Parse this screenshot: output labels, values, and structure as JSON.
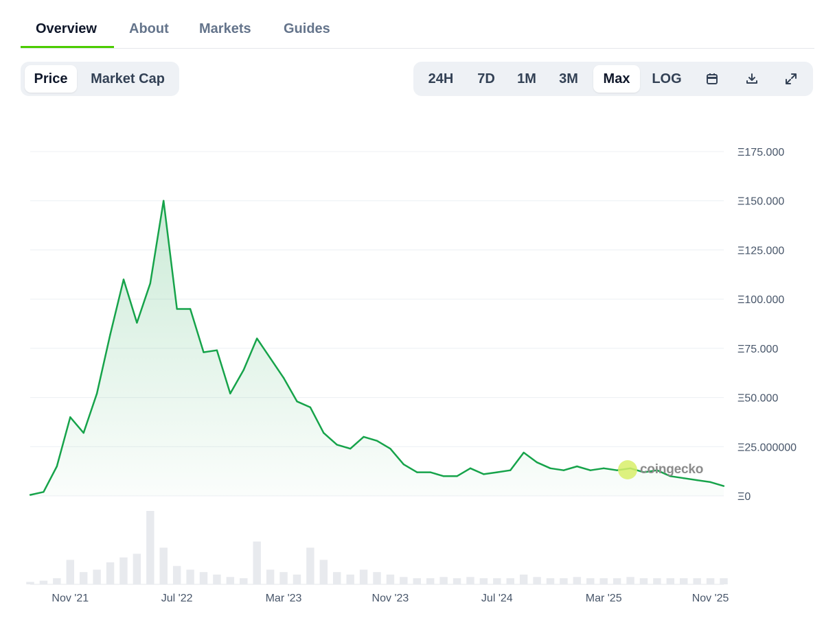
{
  "tabs": [
    {
      "label": "Overview",
      "active": true
    },
    {
      "label": "About",
      "active": false
    },
    {
      "label": "Markets",
      "active": false
    },
    {
      "label": "Guides",
      "active": false
    }
  ],
  "metric_toggle": {
    "options": [
      "Price",
      "Market Cap"
    ],
    "selected": "Price"
  },
  "range_toggle": {
    "options": [
      "24H",
      "7D",
      "1M",
      "3M",
      "Max",
      "LOG"
    ],
    "selected": "Max"
  },
  "toolbar_icons": [
    "calendar-icon",
    "download-icon",
    "expand-icon"
  ],
  "watermark": "coingecko",
  "colors": {
    "line": "#16a34a",
    "accent": "#4bcc00",
    "grid": "#eceff3",
    "volume": "#e8eaee"
  },
  "chart_data": {
    "type": "area",
    "series": [
      {
        "x": [
          "2021-08",
          "2021-09",
          "2021-10",
          "2021-11",
          "2021-12",
          "2022-01",
          "2022-02",
          "2022-03",
          "2022-04",
          "2022-05",
          "2022-06",
          "2022-07",
          "2022-08",
          "2022-09",
          "2022-10",
          "2022-11",
          "2022-12",
          "2023-01",
          "2023-02",
          "2023-03",
          "2023-04",
          "2023-05",
          "2023-06",
          "2023-07",
          "2023-08",
          "2023-09",
          "2023-10",
          "2023-11",
          "2023-12",
          "2024-01",
          "2024-02",
          "2024-03",
          "2024-04",
          "2024-05",
          "2024-06",
          "2024-07",
          "2024-08",
          "2024-09",
          "2024-10",
          "2024-11",
          "2024-12",
          "2025-01",
          "2025-02",
          "2025-03",
          "2025-04",
          "2025-05",
          "2025-06",
          "2025-07",
          "2025-08",
          "2025-09",
          "2025-10",
          "2025-11",
          "2025-12"
        ],
        "values": [
          0.5,
          2,
          15,
          40,
          32,
          52,
          82,
          110,
          88,
          108,
          150,
          95,
          95,
          73,
          74,
          52,
          64,
          80,
          70,
          60,
          48,
          45,
          32,
          26,
          24,
          30,
          28,
          24,
          16,
          12,
          12,
          10,
          10,
          14,
          11,
          12,
          13,
          22,
          17,
          14,
          13,
          15,
          13,
          14,
          13,
          14,
          12,
          13,
          10,
          9,
          8,
          7,
          5
        ]
      }
    ],
    "volume": [
      2,
      3,
      5,
      20,
      10,
      12,
      18,
      22,
      25,
      60,
      30,
      15,
      12,
      10,
      8,
      6,
      5,
      35,
      12,
      10,
      8,
      30,
      20,
      10,
      8,
      12,
      10,
      8,
      6,
      5,
      5,
      6,
      5,
      6,
      5,
      5,
      5,
      8,
      6,
      5,
      5,
      6,
      5,
      5,
      5,
      6,
      5,
      5,
      5,
      5,
      5,
      5,
      5
    ],
    "yticks": [
      "Ξ0",
      "Ξ25.000000",
      "Ξ50.000",
      "Ξ75.000",
      "Ξ100.000",
      "Ξ125.000",
      "Ξ150.000",
      "Ξ175.000"
    ],
    "ytick_values": [
      0,
      25,
      50,
      75,
      100,
      125,
      150,
      175
    ],
    "xticks": [
      "Nov '21",
      "Jul '22",
      "Mar '23",
      "Nov '23",
      "Jul '24",
      "Mar '25",
      "Nov '25"
    ],
    "xtick_dates": [
      "2021-11",
      "2022-07",
      "2023-03",
      "2023-11",
      "2024-07",
      "2025-03",
      "2025-11"
    ],
    "ylim": [
      0,
      175
    ],
    "grid": true
  }
}
